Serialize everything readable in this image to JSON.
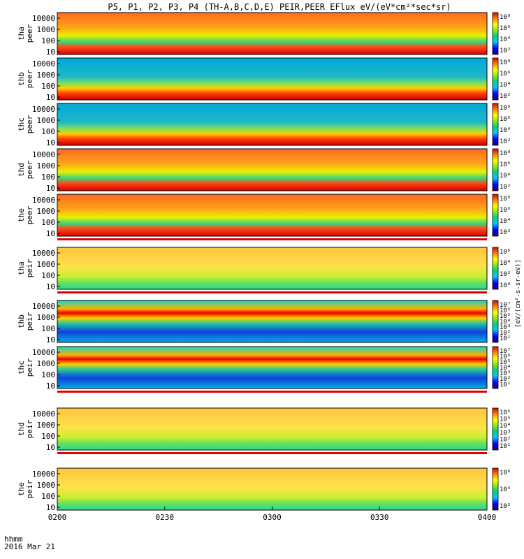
{
  "chart_data": {
    "type": "heatmap",
    "title": "P5, P1, P2, P3, P4 (TH-A,B,C,D,E) PEIR,PEER EFlux eV/(eV*cm²*sec*sr)",
    "x_axis": {
      "label_line1": "hhmm",
      "label_line2": "2016 Mar 21",
      "ticks": [
        "0200",
        "0230",
        "0300",
        "0330",
        "0400"
      ],
      "range_minutes": [
        0,
        120
      ]
    },
    "y_scale": "log",
    "y_ticks": [
      "10000",
      "1000",
      "100",
      "10"
    ],
    "colorbar_unit": "[eV/(cm²-s-sr-eV)]",
    "panels": [
      {
        "label_top": "tha",
        "label_bottom": "peer",
        "cbar_ticks": [
          "10⁸",
          "10⁶",
          "10⁴",
          "10²"
        ],
        "data_gap": false
      },
      {
        "label_top": "thb",
        "label_bottom": "peer",
        "cbar_ticks": [
          "10⁸",
          "10⁶",
          "10⁴",
          "10²"
        ],
        "data_gap": false
      },
      {
        "label_top": "thc",
        "label_bottom": "peer",
        "cbar_ticks": [
          "10⁸",
          "10⁶",
          "10⁴",
          "10²"
        ],
        "data_gap": false
      },
      {
        "label_top": "thd",
        "label_bottom": "peer",
        "cbar_ticks": [
          "10⁸",
          "10⁶",
          "10⁴",
          "10²"
        ],
        "data_gap": false
      },
      {
        "label_top": "the",
        "label_bottom": "peer",
        "cbar_ticks": [
          "10⁸",
          "10⁶",
          "10⁴",
          "10²"
        ],
        "data_gap": true
      },
      {
        "label_top": "tha",
        "label_bottom": "peir",
        "cbar_ticks": [
          "10⁶",
          "10⁴",
          "10²",
          "10⁰"
        ],
        "data_gap": true
      },
      {
        "label_top": "thb",
        "label_bottom": "peir",
        "cbar_ticks": [
          "10⁷",
          "10⁶",
          "10⁵",
          "10⁴",
          "10³",
          "10²",
          "10¹"
        ],
        "data_gap": false
      },
      {
        "label_top": "thc",
        "label_bottom": "peir",
        "cbar_ticks": [
          "10⁷",
          "10⁶",
          "10⁵",
          "10⁴",
          "10³",
          "10²",
          "10¹"
        ],
        "data_gap": true
      },
      {
        "label_top": "thd",
        "label_bottom": "peir",
        "cbar_ticks": [
          "10⁶",
          "10⁵",
          "10⁴",
          "10³",
          "10²",
          "10¹"
        ],
        "data_gap": true
      },
      {
        "label_top": "the",
        "label_bottom": "peir",
        "cbar_ticks": [
          "10⁶",
          "10⁴",
          "10²"
        ],
        "data_gap": false
      }
    ]
  }
}
